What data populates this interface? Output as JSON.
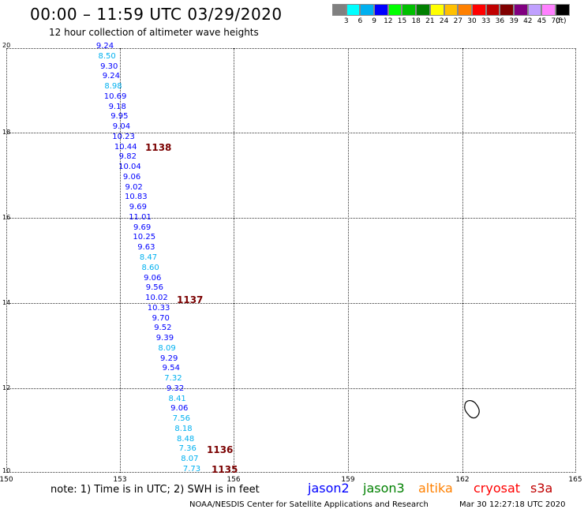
{
  "header": {
    "title": "00:00 – 11:59 UTC 03/29/2020",
    "subtitle": "12 hour collection of altimeter wave heights"
  },
  "colorbar": {
    "colors": [
      "#808080",
      "#00ffff",
      "#00b0f0",
      "#0000ff",
      "#00ff00",
      "#00c000",
      "#008000",
      "#ffff00",
      "#ffc000",
      "#ff8000",
      "#ff0000",
      "#c00000",
      "#800000",
      "#800080",
      "#c0a0ff",
      "#ff80ff",
      "#000000"
    ],
    "labels": [
      "3",
      "6",
      "9",
      "12",
      "15",
      "18",
      "21",
      "24",
      "27",
      "30",
      "33",
      "36",
      "39",
      "42",
      "45",
      "70"
    ],
    "unit": "(ft)"
  },
  "map": {
    "y_ticks": [
      "20",
      "18",
      "16",
      "14",
      "12",
      "10"
    ],
    "x_ticks": [
      "150",
      "153",
      "156",
      "159",
      "162",
      "165"
    ]
  },
  "track": {
    "values": [
      {
        "v": "9.24",
        "c": "#0000ff"
      },
      {
        "v": "8.50",
        "c": "#00b0f0"
      },
      {
        "v": "9.30",
        "c": "#0000ff"
      },
      {
        "v": "9.24",
        "c": "#0000ff"
      },
      {
        "v": "8.98",
        "c": "#00b0f0"
      },
      {
        "v": "10.69",
        "c": "#0000ff"
      },
      {
        "v": "9.18",
        "c": "#0000ff"
      },
      {
        "v": "9.95",
        "c": "#0000ff"
      },
      {
        "v": "9.04",
        "c": "#0000ff"
      },
      {
        "v": "10.23",
        "c": "#0000ff"
      },
      {
        "v": "10.44",
        "c": "#0000ff"
      },
      {
        "v": "9.82",
        "c": "#0000ff"
      },
      {
        "v": "10.04",
        "c": "#0000ff"
      },
      {
        "v": "9.06",
        "c": "#0000ff"
      },
      {
        "v": "9.02",
        "c": "#0000ff"
      },
      {
        "v": "10.83",
        "c": "#0000ff"
      },
      {
        "v": "9.69",
        "c": "#0000ff"
      },
      {
        "v": "11.01",
        "c": "#0000ff"
      },
      {
        "v": "9.69",
        "c": "#0000ff"
      },
      {
        "v": "10.25",
        "c": "#0000ff"
      },
      {
        "v": "9.63",
        "c": "#0000ff"
      },
      {
        "v": "8.47",
        "c": "#00b0f0"
      },
      {
        "v": "8.60",
        "c": "#00b0f0"
      },
      {
        "v": "9.06",
        "c": "#0000ff"
      },
      {
        "v": "9.56",
        "c": "#0000ff"
      },
      {
        "v": "10.02",
        "c": "#0000ff"
      },
      {
        "v": "10.33",
        "c": "#0000ff"
      },
      {
        "v": "9.70",
        "c": "#0000ff"
      },
      {
        "v": "9.52",
        "c": "#0000ff"
      },
      {
        "v": "9.39",
        "c": "#0000ff"
      },
      {
        "v": "8.09",
        "c": "#00b0f0"
      },
      {
        "v": "9.29",
        "c": "#0000ff"
      },
      {
        "v": "9.54",
        "c": "#0000ff"
      },
      {
        "v": "7.32",
        "c": "#00b0f0"
      },
      {
        "v": "9.32",
        "c": "#0000ff"
      },
      {
        "v": "8.41",
        "c": "#00b0f0"
      },
      {
        "v": "9.06",
        "c": "#0000ff"
      },
      {
        "v": "7.56",
        "c": "#00b0f0"
      },
      {
        "v": "8.18",
        "c": "#00b0f0"
      },
      {
        "v": "8.48",
        "c": "#00b0f0"
      },
      {
        "v": "7.36",
        "c": "#00b0f0"
      },
      {
        "v": "8.07",
        "c": "#00b0f0"
      },
      {
        "v": "7.73",
        "c": "#00b0f0"
      }
    ],
    "cycle_times": [
      "1138",
      "1137",
      "1136",
      "1135"
    ]
  },
  "footer": {
    "note": "note: 1) Time is in UTC; 2) SWH is in feet",
    "legend": [
      {
        "label": "jason2",
        "color": "#0000ff"
      },
      {
        "label": "jason3",
        "color": "#008000"
      },
      {
        "label": "altika",
        "color": "#ff8000"
      },
      {
        "label": "cryosat",
        "color": "#ff0000"
      },
      {
        "label": "s3a",
        "color": "#c00000"
      }
    ],
    "credit": "NOAA/NESDIS Center for Satellite Applications and Research",
    "timestamp": "Mar 30 12:27:18 UTC 2020"
  }
}
